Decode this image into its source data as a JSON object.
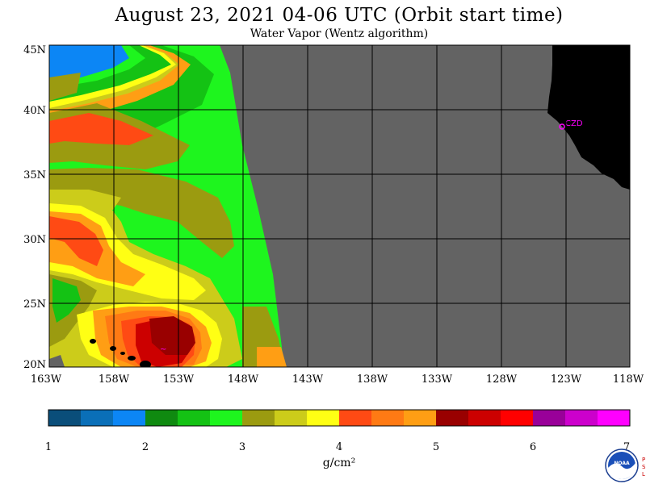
{
  "title": "August 23, 2021  04-06 UTC  (Orbit start time)",
  "subtitle": "Water Vapor (Wentz algorithm)",
  "map": {
    "lat_labels": [
      "45N",
      "40N",
      "35N",
      "30N",
      "25N",
      "20N"
    ],
    "lon_labels": [
      "163W",
      "158W",
      "153W",
      "148W",
      "143W",
      "138W",
      "133W",
      "128W",
      "123W",
      "118W"
    ],
    "lat_range": [
      20,
      45
    ],
    "lon_range": [
      -163,
      -118
    ],
    "no_data_color": "#636363",
    "land_color": "#000000",
    "grid_color": "#000000",
    "place_label": "CZD",
    "place_label_color": "#ff00ff"
  },
  "colorbar": {
    "tick_labels": [
      "1",
      "2",
      "3",
      "4",
      "5",
      "6",
      "7"
    ],
    "unit": "g/cm²",
    "colors": [
      "#0a4e7a",
      "#0a6fb8",
      "#0c86f5",
      "#0f8a10",
      "#14c214",
      "#1ef51e",
      "#9b9b10",
      "#cccc1a",
      "#ffff14",
      "#ff4a14",
      "#ff7a14",
      "#ff9e14",
      "#990000",
      "#cc0000",
      "#ff0000",
      "#990099",
      "#cc00cc",
      "#ff00ff"
    ]
  },
  "logos": {
    "noaa": "NOAA",
    "psl": "PSL"
  }
}
